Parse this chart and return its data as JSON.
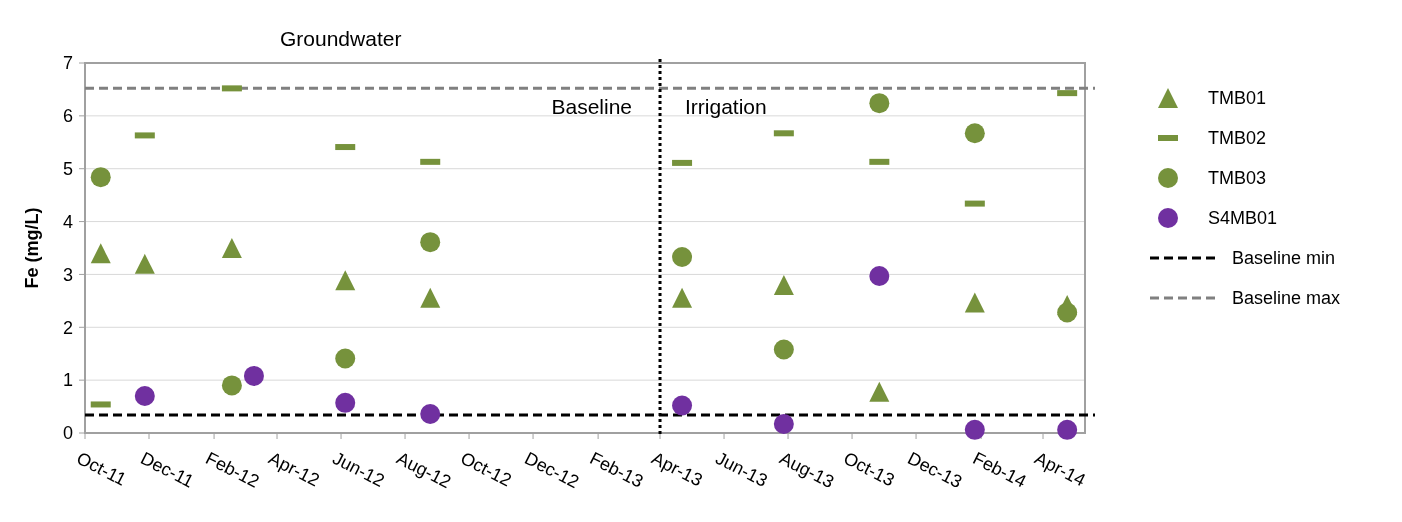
{
  "chart_data": {
    "type": "scatter",
    "title": "Groundwater",
    "ylabel": "Fe (mg/L)",
    "annotations": [
      "Baseline",
      "Irrigation"
    ],
    "xlim": [
      "2011-10-01",
      "2014-05-11"
    ],
    "xticks": [
      {
        "value": "2011-10-01",
        "label": "Oct-11"
      },
      {
        "value": "2011-12-01",
        "label": "Dec-11"
      },
      {
        "value": "2012-02-01",
        "label": "Feb-12"
      },
      {
        "value": "2012-04-01",
        "label": "Apr-12"
      },
      {
        "value": "2012-06-01",
        "label": "Jun-12"
      },
      {
        "value": "2012-08-01",
        "label": "Aug-12"
      },
      {
        "value": "2012-10-01",
        "label": "Oct-12"
      },
      {
        "value": "2012-12-01",
        "label": "Dec-12"
      },
      {
        "value": "2013-02-01",
        "label": "Feb-13"
      },
      {
        "value": "2013-04-01",
        "label": "Apr-13"
      },
      {
        "value": "2013-06-01",
        "label": "Jun-13"
      },
      {
        "value": "2013-08-01",
        "label": "Aug-13"
      },
      {
        "value": "2013-10-01",
        "label": "Oct-13"
      },
      {
        "value": "2013-12-01",
        "label": "Dec-13"
      },
      {
        "value": "2014-02-01",
        "label": "Feb-14"
      },
      {
        "value": "2014-04-01",
        "label": "Apr-14"
      }
    ],
    "ylim": [
      0,
      7
    ],
    "yticks": [
      0,
      1,
      2,
      3,
      4,
      5,
      6,
      7
    ],
    "grid": "y",
    "legend": "right",
    "series": [
      {
        "name": "TMB01",
        "color": "#76923c",
        "marker": "triangle",
        "x": [
          "2011-10-16",
          "2011-11-27",
          "2012-02-18",
          "2012-06-05",
          "2012-08-25",
          "2013-04-22",
          "2013-07-28",
          "2013-10-27",
          "2014-01-26",
          "2014-04-24"
        ],
        "values": [
          3.4,
          3.2,
          3.5,
          2.89,
          2.56,
          2.56,
          2.8,
          0.78,
          2.47,
          2.42
        ]
      },
      {
        "name": "TMB02",
        "color": "#76923c",
        "x": [
          "2011-10-16",
          "2011-11-27",
          "2012-02-18",
          "2012-06-05",
          "2012-08-25",
          "2013-04-22",
          "2013-07-28",
          "2013-10-27",
          "2014-01-26",
          "2014-04-24"
        ],
        "values": [
          0.54,
          5.63,
          6.52,
          5.41,
          5.13,
          5.11,
          5.67,
          5.13,
          4.34,
          6.43
        ]
      },
      {
        "name": "TMB03",
        "color": "#76923c",
        "marker": "circle",
        "x": [
          "2011-10-16",
          "2012-02-18",
          "2012-06-05",
          "2012-08-25",
          "2013-04-22",
          "2013-07-28",
          "2013-10-27",
          "2014-01-26",
          "2014-04-24"
        ],
        "values": [
          4.84,
          0.9,
          1.41,
          3.61,
          3.33,
          1.58,
          6.24,
          5.67,
          2.28
        ]
      },
      {
        "name": "S4MB01",
        "color": "#7030a0",
        "marker": "circle",
        "x": [
          "2011-11-27",
          "2012-03-10",
          "2012-06-05",
          "2012-08-25",
          "2013-04-22",
          "2013-07-28",
          "2013-10-27",
          "2014-01-26",
          "2014-04-24"
        ],
        "values": [
          0.7,
          1.08,
          0.57,
          0.36,
          0.52,
          0.17,
          2.97,
          0.06,
          0.06
        ]
      }
    ],
    "ref_lines": [
      {
        "axis": "y",
        "value": 0.34,
        "label": "Baseline min",
        "color": "#000000",
        "line_style": "dashed"
      },
      {
        "axis": "y",
        "value": 6.52,
        "label": "Baseline max",
        "color": "#808080",
        "line_style": "dashed"
      },
      {
        "axis": "x",
        "value": "2013-04-01",
        "color": "#000000",
        "line_style": "dotted"
      }
    ]
  }
}
